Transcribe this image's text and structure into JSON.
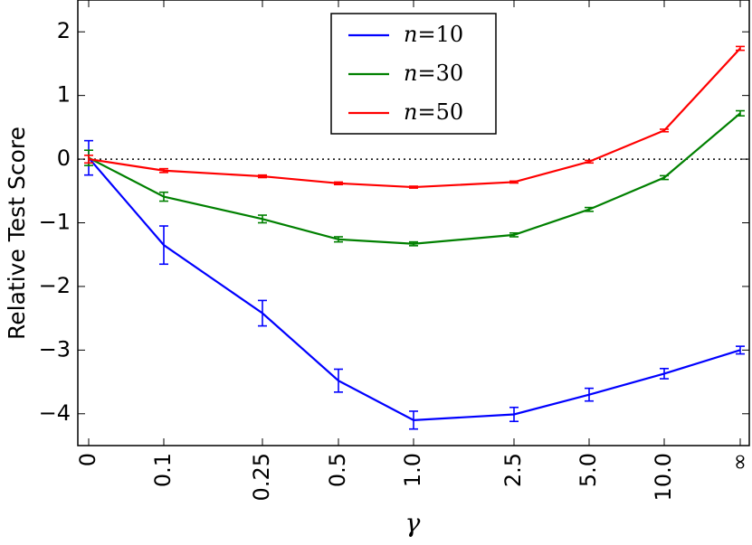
{
  "chart_data": {
    "type": "line",
    "xlabel": "γ",
    "ylabel": "Relative Test Score",
    "categories": [
      "0",
      "0.1",
      "0.25",
      "0.5",
      "1.0",
      "2.5",
      "5.0",
      "10.0",
      "∞"
    ],
    "ylim": [
      -4.5,
      2.5
    ],
    "yticks": [
      "2",
      "1",
      "0",
      "−1",
      "−2",
      "−3",
      "−4"
    ],
    "ytick_values": [
      2,
      1,
      0,
      -1,
      -2,
      -3,
      -4
    ],
    "reference_line": 0,
    "legend_position": "upper center",
    "grid": false,
    "series": [
      {
        "name": "n=10",
        "name_var": "n",
        "name_value": "10",
        "color": "#0000ff",
        "values": [
          0.02,
          -1.35,
          -2.42,
          -3.48,
          -4.1,
          -4.01,
          -3.7,
          -3.37,
          -3.0
        ],
        "errors": [
          0.27,
          0.3,
          0.2,
          0.18,
          0.14,
          0.11,
          0.1,
          0.08,
          0.06
        ]
      },
      {
        "name": "n=30",
        "name_var": "n",
        "name_value": "30",
        "color": "#008000",
        "values": [
          0.02,
          -0.59,
          -0.94,
          -1.26,
          -1.33,
          -1.19,
          -0.79,
          -0.29,
          0.72
        ],
        "errors": [
          0.12,
          0.07,
          0.06,
          0.04,
          0.03,
          0.03,
          0.03,
          0.03,
          0.04
        ]
      },
      {
        "name": "n=50",
        "name_var": "n",
        "name_value": "50",
        "color": "#ff0000",
        "values": [
          0.0,
          -0.18,
          -0.27,
          -0.38,
          -0.44,
          -0.36,
          -0.04,
          0.45,
          1.74
        ],
        "errors": [
          0.06,
          0.03,
          0.02,
          0.02,
          0.015,
          0.015,
          0.02,
          0.02,
          0.03
        ]
      }
    ]
  }
}
